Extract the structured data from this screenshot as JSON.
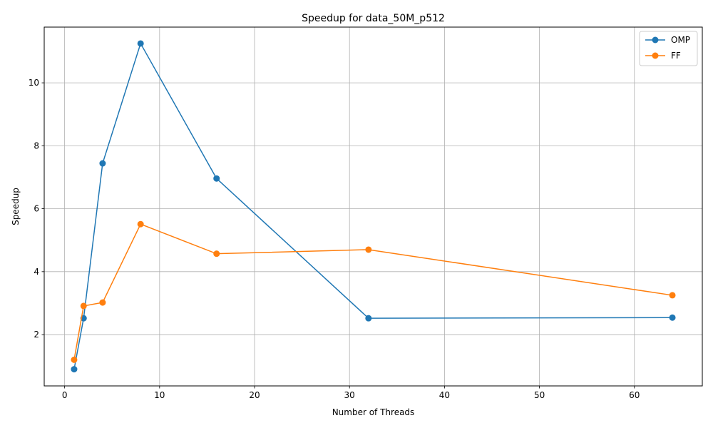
{
  "chart_data": {
    "type": "line",
    "title": "Speedup for data_50M_p512",
    "xlabel": "Number of Threads",
    "ylabel": "Speedup",
    "xlim": [
      -2.15,
      67.15
    ],
    "ylim": [
      0.37,
      11.77
    ],
    "xticks": [
      0,
      10,
      20,
      30,
      40,
      50,
      60
    ],
    "yticks": [
      2,
      4,
      6,
      8,
      10
    ],
    "grid": true,
    "legend_position": "top-right",
    "series": [
      {
        "name": "OMP",
        "color": "#1f77b4",
        "x": [
          1,
          2,
          4,
          8,
          16,
          32,
          64
        ],
        "y": [
          0.9,
          2.52,
          7.44,
          11.25,
          6.96,
          2.52,
          2.54
        ]
      },
      {
        "name": "FF",
        "color": "#ff7f0e",
        "x": [
          1,
          2,
          4,
          8,
          16,
          32,
          64
        ],
        "y": [
          1.2,
          2.91,
          3.02,
          5.51,
          4.57,
          4.7,
          3.25
        ]
      }
    ]
  }
}
